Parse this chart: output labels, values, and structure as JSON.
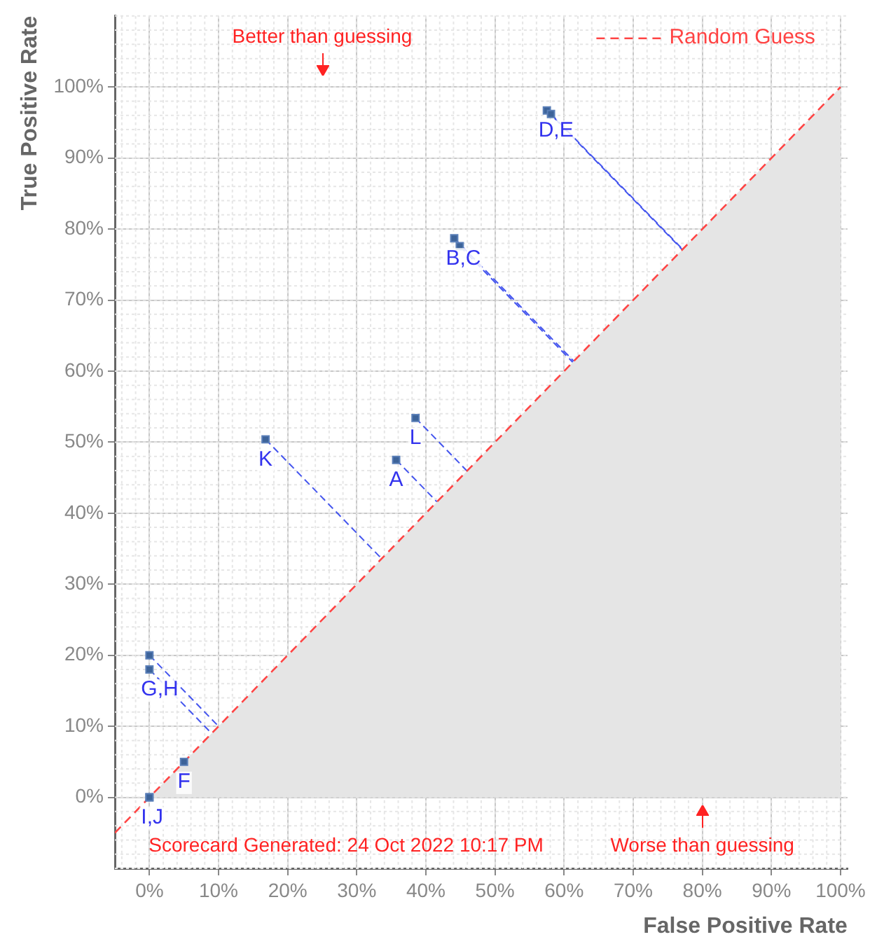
{
  "chart_data": {
    "type": "scatter",
    "xlabel": "False Positive Rate",
    "ylabel": "True Positive Rate",
    "xlim": [
      -5,
      101
    ],
    "ylim": [
      -10,
      110
    ],
    "xticks": [
      {
        "value": 0,
        "label": "0%"
      },
      {
        "value": 10,
        "label": "10%"
      },
      {
        "value": 20,
        "label": "20%"
      },
      {
        "value": 30,
        "label": "30%"
      },
      {
        "value": 40,
        "label": "40%"
      },
      {
        "value": 50,
        "label": "50%"
      },
      {
        "value": 60,
        "label": "60%"
      },
      {
        "value": 70,
        "label": "70%"
      },
      {
        "value": 80,
        "label": "80%"
      },
      {
        "value": 90,
        "label": "90%"
      },
      {
        "value": 100,
        "label": "100%"
      }
    ],
    "yticks": [
      {
        "value": 0,
        "label": "0%"
      },
      {
        "value": 10,
        "label": "10%"
      },
      {
        "value": 20,
        "label": "20%"
      },
      {
        "value": 30,
        "label": "30%"
      },
      {
        "value": 40,
        "label": "40%"
      },
      {
        "value": 50,
        "label": "50%"
      },
      {
        "value": 60,
        "label": "60%"
      },
      {
        "value": 70,
        "label": "70%"
      },
      {
        "value": 80,
        "label": "80%"
      },
      {
        "value": 90,
        "label": "90%"
      },
      {
        "value": 100,
        "label": "100%"
      }
    ],
    "grid": true,
    "legend": "top right",
    "marker": "square",
    "series": [
      {
        "type": "area",
        "color": "#e5e5e5",
        "marker": "none",
        "x": [
          0,
          100
        ],
        "values": [
          0,
          100
        ]
      },
      {
        "type": "line",
        "name": "Random Guess",
        "color": "#ff4444",
        "line_style": "dashed",
        "marker": "none",
        "x": [
          -5,
          100
        ],
        "values": [
          -5,
          100
        ]
      },
      {
        "color": "#3d6399",
        "x": [
          35.7,
          44.1,
          44.9,
          57.5,
          58.1,
          5,
          0,
          0,
          0,
          0,
          16.8,
          38.5
        ],
        "values": [
          47.5,
          78.7,
          77.6,
          96.7,
          96.2,
          5,
          20,
          18,
          0,
          0,
          50.4,
          53.4
        ]
      }
    ],
    "annotations": [
      "Better than guessing",
      "Worse than guessing",
      "Scorecard Generated: 24 Oct 2022 10:17 PM",
      {
        "text": "A",
        "x": 35.7,
        "y": 47.5
      },
      {
        "text": "B,C",
        "x": 44.1,
        "y": 78.7
      },
      {
        "text": "D,E",
        "x": 57.5,
        "y": 96.7
      },
      {
        "text": "F",
        "x": 5,
        "y": 5
      },
      {
        "text": "G,H",
        "x": 0,
        "y": 18
      },
      {
        "text": "I,J",
        "x": 0,
        "y": 0
      },
      {
        "text": "K",
        "x": 16.8,
        "y": 50.4
      },
      {
        "text": "L",
        "x": 38.5,
        "y": 53.4
      }
    ]
  }
}
